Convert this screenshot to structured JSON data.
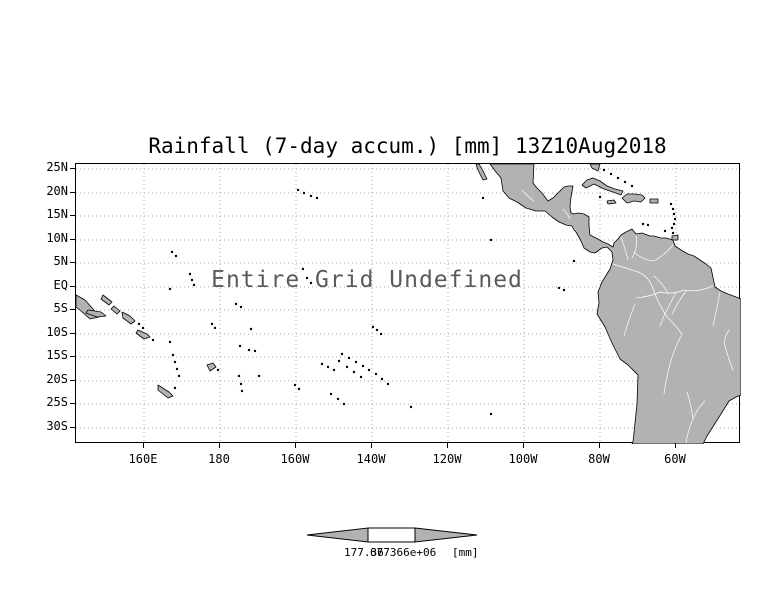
{
  "title": "Rainfall (7-day accum.) [mm] 13Z10Aug2018",
  "plot": {
    "undefined_text": "Entire Grid Undefined",
    "lat_labels": [
      "25N",
      "20N",
      "15N",
      "10N",
      "5N",
      "EQ",
      "5S",
      "10S",
      "15S",
      "20S",
      "25S",
      "30S"
    ],
    "lon_labels": [
      "160E",
      "180",
      "160W",
      "140W",
      "120W",
      "100W",
      "80W",
      "60W"
    ]
  },
  "colorbar": {
    "left_label": "177.36",
    "right_label": "677366e+06",
    "units_label": "[mm]"
  },
  "colors": {
    "land": "#b2b2b2",
    "coastline": "#000000",
    "gridline": "#aaaaaa",
    "undefined_text": "#5a5a5a",
    "background": "#ffffff"
  },
  "chart_data": {
    "type": "map",
    "title": "Rainfall (7-day accum.) [mm] 13Z10Aug2018",
    "variable": "Rainfall (7-day accum.)",
    "units": "mm",
    "valid_time": "13Z10Aug2018",
    "x_tick_labels": [
      "160E",
      "180",
      "160W",
      "140W",
      "120W",
      "100W",
      "80W",
      "60W"
    ],
    "y_tick_labels": [
      "25N",
      "20N",
      "15N",
      "10N",
      "5N",
      "EQ",
      "5S",
      "10S",
      "15S",
      "20S",
      "25S",
      "30S"
    ],
    "grid_style": "dotted lat-lon graticule",
    "data_status": "Entire Grid Undefined",
    "colorbar_labels": [
      "177.36",
      "677366e+06",
      "[mm]"
    ]
  }
}
